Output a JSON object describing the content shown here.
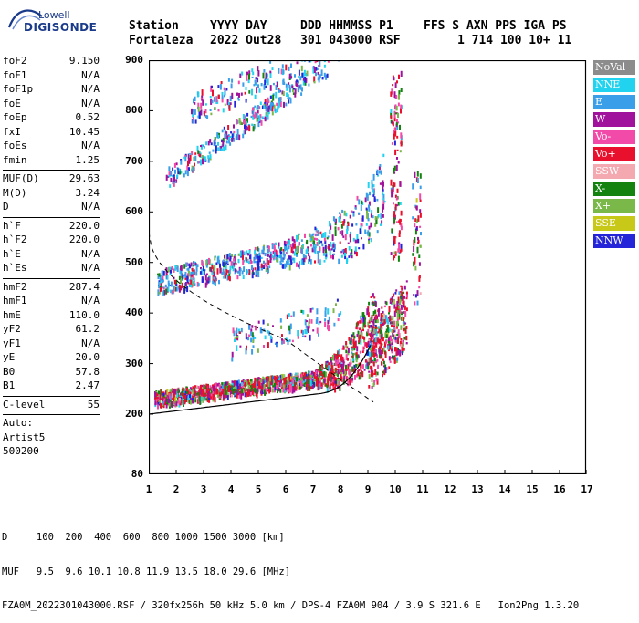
{
  "logo": {
    "line1": "Lowell",
    "line2": "DIGISONDE"
  },
  "header": {
    "row1": [
      "Station",
      "YYYY DAY",
      "DDD HHMMSS P1",
      "FFS S AXN PPS IGA PS"
    ],
    "row2": [
      "Fortaleza",
      "2022 Out28",
      "301 043000 RSF",
      "1 714 100 10+ 11"
    ]
  },
  "params": {
    "group1": [
      {
        "k": "foF2",
        "v": "9.150"
      },
      {
        "k": "foF1",
        "v": "N/A"
      },
      {
        "k": "foF1p",
        "v": "N/A"
      },
      {
        "k": "foE",
        "v": "N/A"
      },
      {
        "k": "foEp",
        "v": "0.52"
      },
      {
        "k": "fxI",
        "v": "10.45"
      },
      {
        "k": "foEs",
        "v": "N/A"
      },
      {
        "k": "fmin",
        "v": "1.25"
      }
    ],
    "group2": [
      {
        "k": "MUF(D)",
        "v": "29.63"
      },
      {
        "k": "M(D)",
        "v": "3.24"
      },
      {
        "k": "D",
        "v": "N/A"
      }
    ],
    "group3": [
      {
        "k": "h`F",
        "v": "220.0"
      },
      {
        "k": "h`F2",
        "v": "220.0"
      },
      {
        "k": "h`E",
        "v": "N/A"
      },
      {
        "k": "h`Es",
        "v": "N/A"
      }
    ],
    "group4": [
      {
        "k": "hmF2",
        "v": "287.4"
      },
      {
        "k": "hmF1",
        "v": "N/A"
      },
      {
        "k": "hmE",
        "v": "110.0"
      },
      {
        "k": "yF2",
        "v": "61.2"
      },
      {
        "k": "yF1",
        "v": "N/A"
      },
      {
        "k": "yE",
        "v": "20.0"
      },
      {
        "k": "B0",
        "v": "57.8"
      },
      {
        "k": "B1",
        "v": "2.47"
      }
    ],
    "group5": [
      {
        "k": "C-level",
        "v": "55"
      }
    ],
    "auto": [
      "Auto:",
      "Artist5",
      "500200"
    ]
  },
  "legend": [
    {
      "label": "NoVal",
      "color": "#8c8c8c"
    },
    {
      "label": "NNE",
      "color": "#22d3f0"
    },
    {
      "label": "E",
      "color": "#3a9ee8"
    },
    {
      "label": "W",
      "color": "#a0129c"
    },
    {
      "label": "Vo-",
      "color": "#f24aa8"
    },
    {
      "label": "Vo+",
      "color": "#e8102c"
    },
    {
      "label": "SSW",
      "color": "#f4a8b0"
    },
    {
      "label": "X-",
      "color": "#13820f"
    },
    {
      "label": "X+",
      "color": "#7ab84a"
    },
    {
      "label": "SSE",
      "color": "#c8c818"
    },
    {
      "label": "NNW",
      "color": "#2424d8"
    }
  ],
  "axes": {
    "y_ticks": [
      "900",
      "800",
      "700",
      "600",
      "500",
      "400",
      "300",
      "200",
      "80"
    ],
    "x_ticks": [
      "1",
      "2",
      "3",
      "4",
      "5",
      "6",
      "7",
      "8",
      "9",
      "10",
      "11",
      "12",
      "13",
      "14",
      "15",
      "16",
      "17"
    ]
  },
  "footer": {
    "line1": "D     100  200  400  600  800 1000 1500 3000 [km]",
    "line2": "MUF   9.5  9.6 10.1 10.8 11.9 13.5 18.0 29.6 [MHz]",
    "line3": "FZA0M_2022301043000.RSF / 320fx256h 50 kHz 5.0 km / DPS-4 FZA0M 904 / 3.9 S 321.6 E   Ion2Png 1.3.20"
  }
}
